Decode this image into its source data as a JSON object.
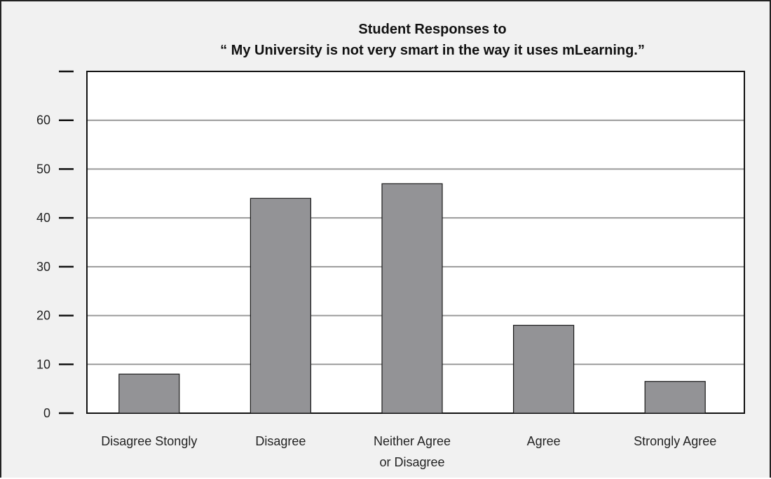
{
  "chart_data": {
    "type": "bar",
    "title": "Student Responses to",
    "subtitle": "“ My University is not very smart in the way it uses mLearning.”",
    "categories": [
      [
        "Disagree Stongly"
      ],
      [
        "Disagree"
      ],
      [
        "Neither Agree",
        "or Disagree"
      ],
      [
        "Agree"
      ],
      [
        "Strongly Agree"
      ]
    ],
    "values": [
      8,
      44,
      47,
      18,
      6.5
    ],
    "ylim": [
      0,
      70
    ],
    "yticks": [
      0,
      10,
      20,
      30,
      40,
      50,
      60,
      70
    ],
    "ytick_labels": [
      "0",
      "10",
      "20",
      "30",
      "40",
      "50",
      "60",
      ""
    ],
    "grid": true,
    "xlabel": "",
    "ylabel": "",
    "colors": {
      "bar": "#939396",
      "bar_stroke": "#1a1a1a",
      "grid": "#9a9a9a",
      "plot_bg": "#ffffff",
      "frame_bg": "#f1f1f1"
    }
  }
}
